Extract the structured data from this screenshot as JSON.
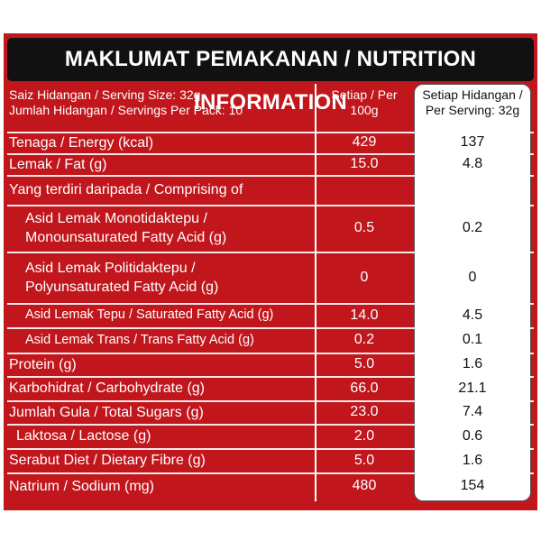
{
  "title": "MAKLUMAT PEMAKANAN / NUTRITION INFORMATION",
  "header": {
    "serving_size": "Saiz Hidangan / Serving Size: 32g",
    "servings_per_pack": "Jumlah Hidangan / Servings Per Pack: 10",
    "col_per100_line1": "Setiap / Per",
    "col_per100_line2": "100g",
    "col_serving_line1": "Setiap Hidangan /",
    "col_serving_line2": "Per Serving: 32g"
  },
  "rows": [
    {
      "label": "Tenaga / Energy (kcal)",
      "per100": "429",
      "perServing": "137"
    },
    {
      "label": "Lemak / Fat (g)",
      "per100": "15.0",
      "perServing": "4.8"
    },
    {
      "label": "Yang terdiri daripada / Comprising of",
      "per100": "",
      "perServing": ""
    },
    {
      "label1": "Asid Lemak Monotidaktepu /",
      "label2": "Monounsaturated Fatty Acid (g)",
      "per100": "0.5",
      "perServing": "0.2"
    },
    {
      "label1": "Asid Lemak Politidaktepu /",
      "label2": "Polyunsaturated Fatty Acid (g)",
      "per100": "0",
      "perServing": "0"
    },
    {
      "label": "Asid Lemak Tepu / Saturated Fatty Acid (g)",
      "per100": "14.0",
      "perServing": "4.5"
    },
    {
      "label": "Asid Lemak Trans / Trans Fatty Acid (g)",
      "per100": "0.2",
      "perServing": "0.1"
    },
    {
      "label": "Protein (g)",
      "per100": "5.0",
      "perServing": "1.6"
    },
    {
      "label": "Karbohidrat / Carbohydrate (g)",
      "per100": "66.0",
      "perServing": "21.1"
    },
    {
      "label": "Jumlah Gula / Total Sugars (g)",
      "per100": "23.0",
      "perServing": "7.4"
    },
    {
      "label": "Laktosa / Lactose (g)",
      "per100": "2.0",
      "perServing": "0.6"
    },
    {
      "label": "Serabut Diet / Dietary Fibre (g)",
      "per100": "5.0",
      "perServing": "1.6"
    },
    {
      "label": "Natrium / Sodium (mg)",
      "per100": "480",
      "perServing": "154"
    }
  ],
  "colors": {
    "panel_red": "#c0161c",
    "title_black": "#111111",
    "white": "#ffffff"
  }
}
